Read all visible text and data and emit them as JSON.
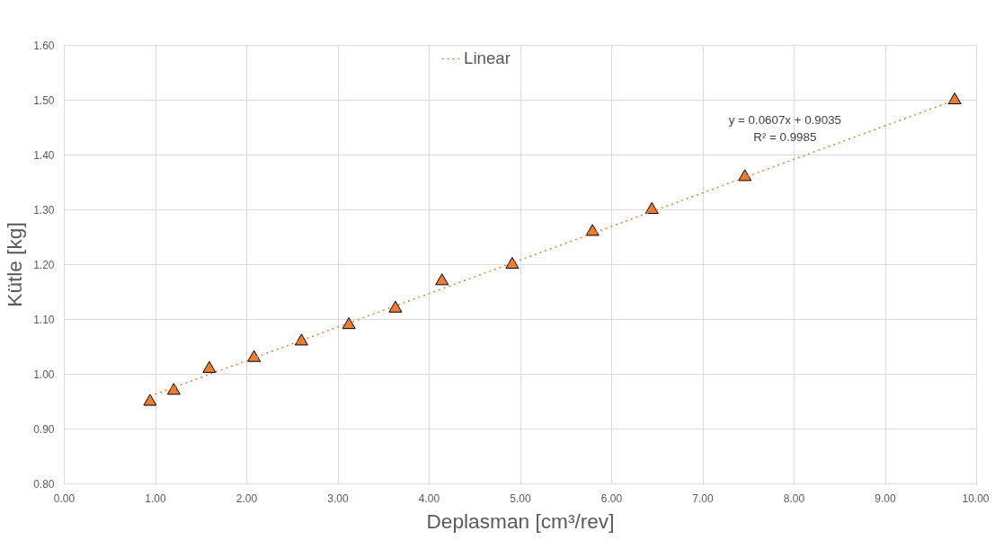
{
  "chart_data": {
    "type": "scatter",
    "xlabel": "Deplasman [cm³/rev]",
    "ylabel": "Kütle [kg]",
    "series": [
      {
        "type": "scatter",
        "color": "#ed7d31",
        "marker": "triangle",
        "x": [
          0.94,
          1.2,
          1.59,
          2.08,
          2.6,
          3.12,
          3.63,
          4.14,
          4.91,
          5.79,
          6.44,
          7.46,
          9.76
        ],
        "values": [
          0.95,
          0.97,
          1.01,
          1.03,
          1.06,
          1.09,
          1.12,
          1.17,
          1.2,
          1.26,
          1.3,
          1.36,
          1.5
        ]
      },
      {
        "type": "line",
        "name": "Linear",
        "color": "#ed7d31",
        "line_style": "dotted",
        "x": [
          0.94,
          9.76
        ],
        "values": [
          0.96,
          1.5
        ]
      }
    ],
    "annotations": [
      "y = 0.0607x + 0.9035",
      "R² = 0.9985"
    ],
    "xlim": [
      0,
      10
    ],
    "ylim": [
      0.8,
      1.6
    ],
    "xticks": [
      {
        "value": 0,
        "label": "0.00"
      },
      {
        "value": 1,
        "label": "1.00"
      },
      {
        "value": 2,
        "label": "2.00"
      },
      {
        "value": 3,
        "label": "3.00"
      },
      {
        "value": 4,
        "label": "4.00"
      },
      {
        "value": 5,
        "label": "5.00"
      },
      {
        "value": 6,
        "label": "6.00"
      },
      {
        "value": 7,
        "label": "7.00"
      },
      {
        "value": 8,
        "label": "8.00"
      },
      {
        "value": 9,
        "label": "9.00"
      },
      {
        "value": 10,
        "label": "10.00"
      }
    ],
    "yticks": [
      {
        "value": 0.8,
        "label": "0.80"
      },
      {
        "value": 0.9,
        "label": "0.90"
      },
      {
        "value": 1.0,
        "label": "1.00"
      },
      {
        "value": 1.1,
        "label": "1.10"
      },
      {
        "value": 1.2,
        "label": "1.20"
      },
      {
        "value": 1.3,
        "label": "1.30"
      },
      {
        "value": 1.4,
        "label": "1.40"
      },
      {
        "value": 1.5,
        "label": "1.50"
      },
      {
        "value": 1.6,
        "label": "1.60"
      }
    ],
    "grid": true,
    "legend": "top"
  }
}
